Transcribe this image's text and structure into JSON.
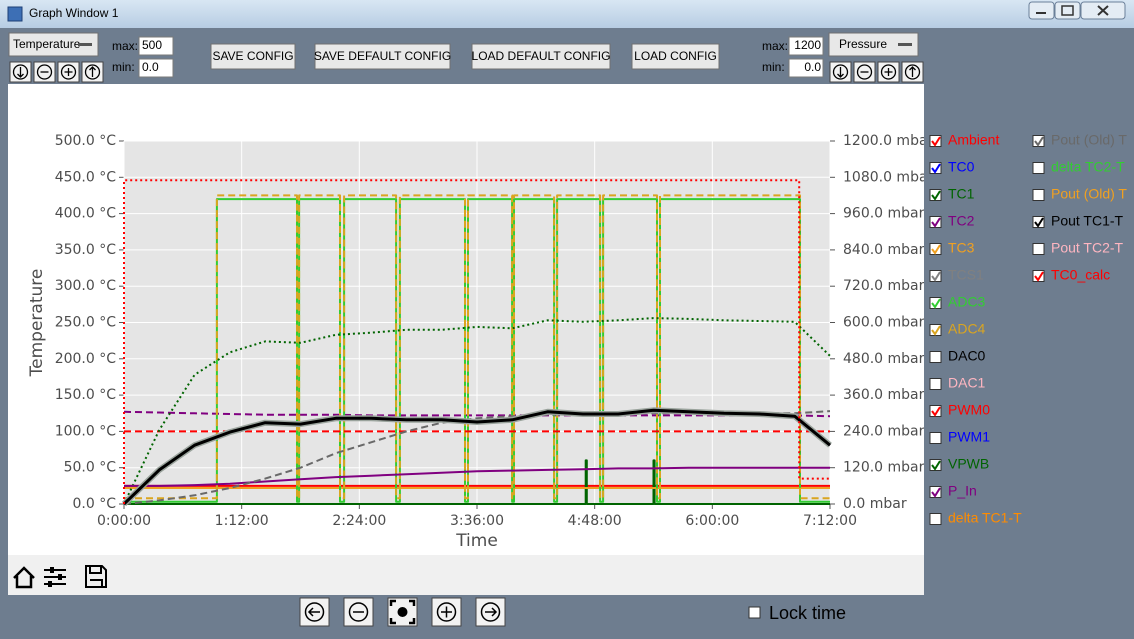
{
  "window": {
    "title": "Graph Window 1"
  },
  "toolbar": {
    "left_axis": {
      "selector": "Temperature",
      "max_label": "max:",
      "max": "500",
      "min_label": "min:",
      "min": "0.0"
    },
    "buttons": [
      "SAVE CONFIG",
      "SAVE DEFAULT CONFIG",
      "LOAD DEFAULT CONFIG",
      "LOAD CONFIG"
    ],
    "right_axis": {
      "selector": "Pressure",
      "max_label": "max:",
      "max": "1200",
      "min_label": "min:",
      "min": "0.0"
    }
  },
  "chart_data": {
    "type": "line",
    "x_label": "Time",
    "y_label": "Temperature",
    "grid": true,
    "x": [
      0,
      1296,
      2592,
      3888,
      5184,
      6480,
      7776,
      9072,
      10368,
      11664,
      12960,
      14256,
      15552,
      16848,
      18144,
      19440,
      20736,
      22032,
      23328,
      24624,
      25920
    ],
    "xlim": [
      0,
      25920
    ],
    "xticks": [
      {
        "value": 0,
        "label": "0:00:00"
      },
      {
        "value": 4320,
        "label": "1:12:00"
      },
      {
        "value": 8640,
        "label": "2:24:00"
      },
      {
        "value": 12960,
        "label": "3:36:00"
      },
      {
        "value": 17280,
        "label": "4:48:00"
      },
      {
        "value": 21600,
        "label": "6:00:00"
      },
      {
        "value": 25920,
        "label": "7:12:00"
      }
    ],
    "ylim": [
      0,
      500
    ],
    "yticks": [
      {
        "value": 0,
        "label": "0.0 °C"
      },
      {
        "value": 50,
        "label": "50.0 °C"
      },
      {
        "value": 100,
        "label": "100.0 °C"
      },
      {
        "value": 150,
        "label": "150.0 °C"
      },
      {
        "value": 200,
        "label": "200.0 °C"
      },
      {
        "value": 250,
        "label": "250.0 °C"
      },
      {
        "value": 300,
        "label": "300.0 °C"
      },
      {
        "value": 350,
        "label": "350.0 °C"
      },
      {
        "value": 400,
        "label": "400.0 °C"
      },
      {
        "value": 450,
        "label": "450.0 °C"
      },
      {
        "value": 500,
        "label": "500.0 °C"
      }
    ],
    "y2lim": [
      0,
      1200
    ],
    "y2ticks": [
      {
        "value": 0,
        "label": "0.0 mbar"
      },
      {
        "value": 120,
        "label": "120.0 mbar"
      },
      {
        "value": 240,
        "label": "240.0 mbar"
      },
      {
        "value": 360,
        "label": "360.0 mbar"
      },
      {
        "value": 480,
        "label": "480.0 mbar"
      },
      {
        "value": 600,
        "label": "600.0 mbar"
      },
      {
        "value": 720,
        "label": "720.0 mbar"
      },
      {
        "value": 840,
        "label": "840.0 mbar"
      },
      {
        "value": 960,
        "label": "960.0 mbar"
      },
      {
        "value": 1080,
        "label": "1080.0 mbar"
      },
      {
        "value": 1200,
        "label": "1200.0 mbar"
      }
    ],
    "series": [
      {
        "name": "Ambient",
        "color": "#ff0000",
        "checked": true,
        "style": "solid",
        "values": [
          25,
          25,
          25,
          25,
          25,
          25,
          25,
          25,
          25,
          25,
          25,
          25,
          25,
          25,
          25,
          25,
          25,
          25,
          25,
          25,
          25
        ]
      },
      {
        "name": "TC0",
        "color": "#0000ff",
        "checked": true,
        "style": "solid",
        "values": [
          0,
          47,
          81,
          99,
          112,
          110,
          118,
          118,
          116,
          116,
          113,
          116,
          127,
          124,
          124,
          129,
          127,
          125,
          124,
          121,
          81
        ]
      },
      {
        "name": "TC1",
        "color": "#006400",
        "checked": true,
        "style": "solid",
        "x": [
          0,
          16950,
          16950,
          16990,
          16990,
          19440,
          19440,
          19480,
          19480,
          25920
        ],
        "values": [
          0,
          0,
          60,
          60,
          0,
          0,
          60,
          60,
          0,
          0
        ]
      },
      {
        "name": "TC2",
        "color": "#800080",
        "checked": true,
        "style": "dashed",
        "values": [
          127,
          126,
          125,
          124,
          123,
          123,
          123,
          122,
          122,
          122,
          122,
          122,
          122,
          122,
          122,
          122,
          122,
          122,
          122,
          122,
          121
        ]
      },
      {
        "name": "TC3",
        "color": "#f0a020",
        "checked": true,
        "style": "solid",
        "values": [
          22,
          22,
          22,
          22,
          22,
          22,
          22,
          22,
          22,
          22,
          22,
          22,
          22,
          22,
          22,
          22,
          22,
          22,
          22,
          22,
          22
        ]
      },
      {
        "name": "TCS1",
        "color": "#808080",
        "checked": true,
        "style": "solid",
        "values": [
          0,
          47,
          81,
          99,
          112,
          110,
          118,
          118,
          116,
          116,
          113,
          116,
          127,
          124,
          124,
          129,
          127,
          125,
          124,
          121,
          81
        ]
      },
      {
        "name": "ADC3",
        "color": "#32cd32",
        "checked": true,
        "style": "solid",
        "x": [
          0,
          3410,
          3410,
          6350,
          6350,
          6430,
          6430,
          7930,
          7930,
          8080,
          8080,
          9990,
          9990,
          10130,
          10130,
          12520,
          12520,
          12630,
          12630,
          14250,
          14250,
          14320,
          14320,
          15790,
          15790,
          15900,
          15900,
          17480,
          17480,
          17590,
          17590,
          19570,
          19570,
          19680,
          19680,
          24820,
          24820,
          25920
        ],
        "values": [
          3,
          3,
          420,
          420,
          3,
          3,
          420,
          420,
          3,
          3,
          420,
          420,
          3,
          3,
          420,
          420,
          3,
          3,
          420,
          420,
          3,
          3,
          420,
          420,
          3,
          3,
          420,
          420,
          3,
          3,
          420,
          420,
          3,
          3,
          420,
          420,
          3,
          3
        ]
      },
      {
        "name": "ADC4",
        "color": "#daa520",
        "checked": true,
        "style": "dashed",
        "x": [
          0,
          3410,
          3410,
          6350,
          6350,
          6430,
          6430,
          7930,
          7930,
          8080,
          8080,
          9990,
          9990,
          10130,
          10130,
          12520,
          12520,
          12630,
          12630,
          14250,
          14250,
          14320,
          14320,
          15790,
          15790,
          15900,
          15900,
          17480,
          17480,
          17590,
          17590,
          19570,
          19570,
          19680,
          19680,
          24820,
          24820,
          25920
        ],
        "values": [
          8,
          8,
          425,
          425,
          8,
          8,
          425,
          425,
          8,
          8,
          425,
          425,
          8,
          8,
          425,
          425,
          8,
          8,
          425,
          425,
          8,
          8,
          425,
          425,
          8,
          8,
          425,
          425,
          8,
          8,
          425,
          425,
          8,
          8,
          425,
          425,
          8,
          8
        ]
      },
      {
        "name": "DAC0",
        "color": "#000000",
        "checked": false
      },
      {
        "name": "DAC1",
        "color": "#ffb6c1",
        "checked": false
      },
      {
        "name": "PWM0",
        "color": "#ff0000",
        "checked": true,
        "style": "dashed",
        "values": [
          100,
          100,
          100,
          100,
          100,
          100,
          100,
          100,
          100,
          100,
          100,
          100,
          100,
          100,
          100,
          100,
          100,
          100,
          100,
          100,
          100
        ]
      },
      {
        "name": "PWM1",
        "color": "#0000ff",
        "checked": false
      },
      {
        "name": "VPWB",
        "color": "#006400",
        "checked": true,
        "style": "dotted",
        "values": [
          0,
          102,
          178,
          209,
          224,
          222,
          233,
          236,
          240,
          240,
          244,
          242,
          253,
          251,
          253,
          256,
          255,
          253,
          252,
          251,
          204
        ]
      },
      {
        "name": "P_In",
        "color": "#800080",
        "checked": true,
        "style": "solid",
        "values": [
          25,
          25,
          26,
          28,
          31,
          34,
          37,
          39,
          41,
          43,
          45,
          46,
          47,
          48,
          49,
          49,
          50,
          50,
          50,
          50,
          50
        ]
      },
      {
        "name": "delta TC1-T",
        "color": "#ff8c00",
        "checked": false
      },
      {
        "name": "Pout (Old) T",
        "color": "#696969",
        "checked": true,
        "style": "dashed",
        "values": [
          0,
          5,
          12,
          22,
          35,
          50,
          70,
          85,
          100,
          112,
          118,
          121,
          123,
          124,
          124,
          125,
          125,
          125,
          125,
          125,
          128
        ]
      },
      {
        "name": "delta TC2-T",
        "color": "#32cd32",
        "checked": false
      },
      {
        "name": "Pout (Old) T",
        "color": "#f0a020",
        "checked": false
      },
      {
        "name": "Pout TC1-T",
        "color": "#000000",
        "checked": true,
        "style": "thick",
        "values": [
          0,
          47,
          81,
          99,
          112,
          110,
          118,
          118,
          116,
          116,
          113,
          116,
          127,
          124,
          124,
          129,
          127,
          125,
          124,
          121,
          81
        ]
      },
      {
        "name": "Pout TC2-T",
        "color": "#ffb6c1",
        "checked": false
      },
      {
        "name": "TC0_calc",
        "color": "#ff0000",
        "checked": true,
        "style": "dotted",
        "x": [
          0,
          0,
          24790,
          24790,
          25920
        ],
        "values": [
          0,
          446,
          446,
          35,
          35
        ]
      }
    ]
  },
  "lock_time": {
    "label": "Lock time",
    "checked": false
  }
}
